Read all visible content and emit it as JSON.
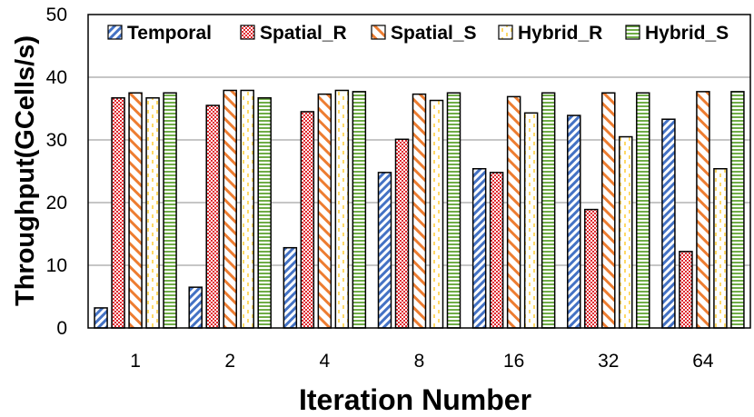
{
  "chart_data": {
    "type": "bar",
    "categories": [
      "1",
      "2",
      "4",
      "8",
      "16",
      "32",
      "64"
    ],
    "series": [
      {
        "name": "Temporal",
        "values": [
          3.2,
          6.5,
          12.8,
          24.8,
          25.4,
          33.9,
          33.3
        ],
        "color": "#4472c4",
        "pattern": "diag-blue"
      },
      {
        "name": "Spatial_R",
        "values": [
          36.7,
          35.5,
          34.5,
          30.1,
          24.8,
          18.9,
          12.2
        ],
        "color": "#e0282e",
        "pattern": "check-red"
      },
      {
        "name": "Spatial_S",
        "values": [
          37.5,
          37.9,
          37.3,
          37.3,
          36.9,
          37.5,
          37.7
        ],
        "color": "#ed7d31",
        "pattern": "wide-orange"
      },
      {
        "name": "Hybrid_R",
        "values": [
          36.7,
          37.9,
          37.9,
          36.3,
          34.3,
          30.5,
          25.4
        ],
        "color": "#ffd966",
        "pattern": "dash-yellow"
      },
      {
        "name": "Hybrid_S",
        "values": [
          37.5,
          36.7,
          37.7,
          37.5,
          37.5,
          37.5,
          37.7
        ],
        "color": "#70ad47",
        "pattern": "hstripe-green"
      }
    ],
    "xlabel": "Iteration Number",
    "ylabel": "Throughput(GCells/s)",
    "ylim": [
      0,
      50
    ],
    "yticks": [
      "0",
      "10",
      "20",
      "30",
      "40",
      "50"
    ],
    "grid": true,
    "legend_position": "top"
  }
}
